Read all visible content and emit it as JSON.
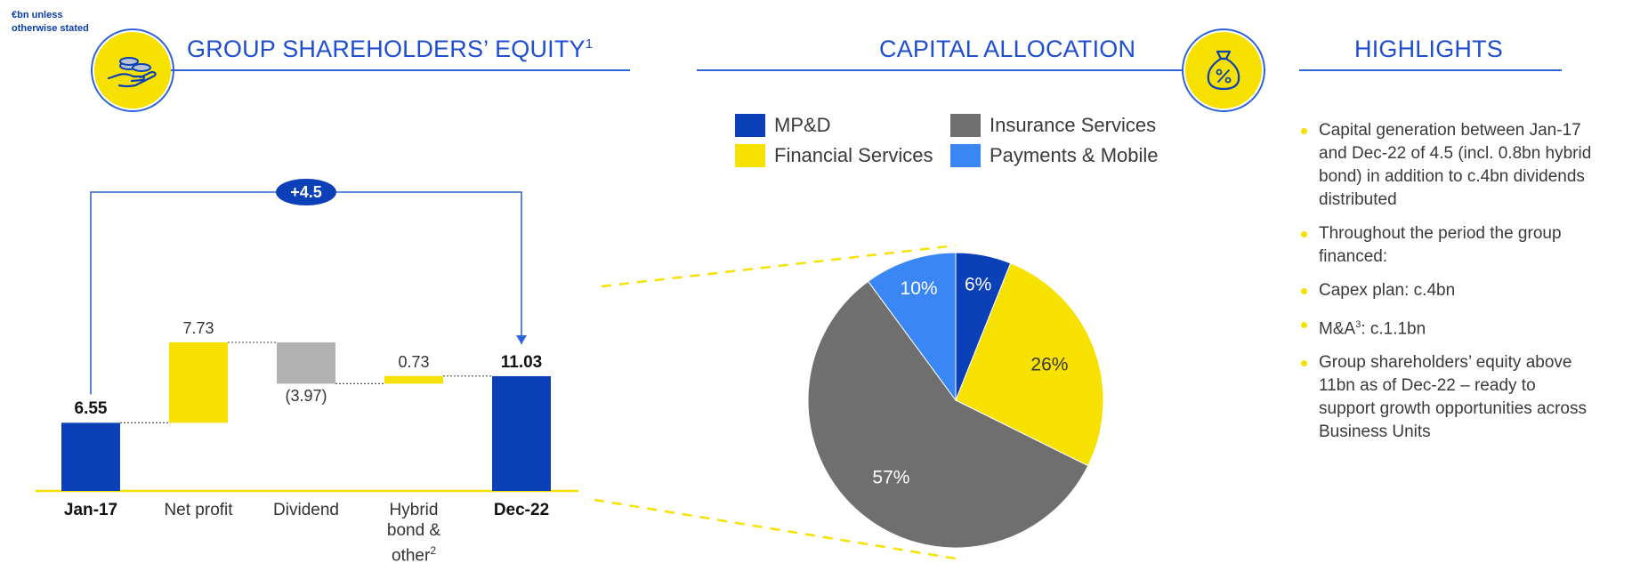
{
  "note": "€bn unless otherwise stated",
  "equity_section": {
    "title": "GROUP SHAREHOLDERS’ EQUITY",
    "title_sup": "1",
    "icon": "coins-hand-icon",
    "change_badge": "+4.5"
  },
  "allocation_section": {
    "title": "CAPITAL ALLOCATION",
    "icon": "money-bag-percent-icon"
  },
  "highlights_section": {
    "title": "HIGHLIGHTS",
    "items": [
      {
        "text": "Capital generation between Jan-17 and Dec-22 of 4.5 (incl. 0.8bn hybrid bond) in addition to c.4bn dividends distributed"
      },
      {
        "text": "Throughout the period the group financed:"
      },
      {
        "text": "Capex plan: c.4bn"
      },
      {
        "pre": "M&A",
        "sup": "3",
        "post": ": c.1.1bn"
      },
      {
        "text": "Group shareholders’ equity above 11bn as of Dec-22 – ready to support growth opportunities across Business Units"
      }
    ]
  },
  "colors": {
    "dark_blue": "#0b40b8",
    "yellow": "#f7e100",
    "grey_bar": "#b2b2b2",
    "pie_grey": "#6f6f6f",
    "light_blue": "#3b86f5",
    "title_blue": "#1f4fd0"
  },
  "chart_data": [
    {
      "type": "bar",
      "subtype": "waterfall",
      "categories": [
        {
          "label": "Jan-17",
          "bold": true
        },
        {
          "label": "Net profit",
          "bold": false
        },
        {
          "label": "Dividend",
          "bold": false
        },
        {
          "label": "Hybrid bond & other",
          "label_lines": [
            "Hybrid",
            "bond &",
            "other"
          ],
          "sup": "2",
          "bold": false
        },
        {
          "label": "Dec-22",
          "bold": true
        }
      ],
      "values": [
        6.55,
        7.73,
        -3.97,
        0.73,
        11.03
      ],
      "value_labels": [
        "6.55",
        "7.73",
        "(3.97)",
        "0.73",
        "11.03"
      ],
      "measures": [
        "absolute",
        "relative",
        "relative",
        "relative",
        "total"
      ],
      "bar_colors": [
        "#0b40b8",
        "#f7e100",
        "#b2b2b2",
        "#f7e100",
        "#0b40b8"
      ],
      "ylim": [
        0,
        15
      ],
      "annotation": "+4.5"
    },
    {
      "type": "pie",
      "legend": [
        {
          "label": "MP&D",
          "color": "#0b40b8"
        },
        {
          "label": "Insurance Services",
          "color": "#6f6f6f"
        },
        {
          "label": "Financial Services",
          "color": "#f7e100"
        },
        {
          "label": "Payments & Mobile",
          "color": "#3b86f5"
        }
      ],
      "slices": [
        {
          "name": "MP&D",
          "value": 6,
          "label": "6%",
          "color": "#0b40b8"
        },
        {
          "name": "Financial Services",
          "value": 26,
          "label": "26%",
          "color": "#f7e100"
        },
        {
          "name": "Insurance Services",
          "value": 57,
          "label": "57%",
          "color": "#6f6f6f"
        },
        {
          "name": "Payments & Mobile",
          "value": 10,
          "label": "10%",
          "color": "#3b86f5"
        }
      ],
      "start": "12 o'clock",
      "direction": "clockwise",
      "legend_position": "top"
    }
  ]
}
